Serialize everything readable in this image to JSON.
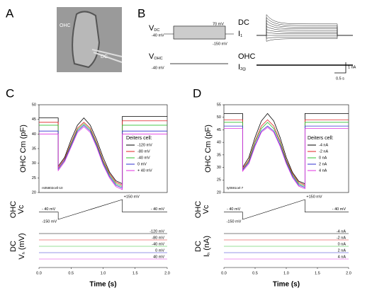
{
  "panel_labels": [
    "A",
    "B",
    "C",
    "D"
  ],
  "panel_a": {
    "labels": [
      "OHC",
      "DC"
    ]
  },
  "panel_b": {
    "vdc": {
      "main": "V",
      "sub": "DC"
    },
    "vdc_labels": [
      "70 mV",
      "-40 mV",
      "-150 mV"
    ],
    "vohc": {
      "main": "V",
      "sub": "OHC"
    },
    "vohc_label": "-40 mV",
    "dc": "DC",
    "i1": {
      "main": "I",
      "sub": "1"
    },
    "ohc": "OHC",
    "i2": {
      "main": "I",
      "sub": "2(j)"
    },
    "scale_y": "1 nA",
    "scale_x": "0.5 s"
  },
  "chart_data": [
    {
      "type": "line",
      "ylabel": "OHC Cm (pF)",
      "xlabel": "Time (s)",
      "xlim": [
        0,
        2
      ],
      "xticks": [
        {
          "value": 0,
          "label": "0.0"
        },
        {
          "value": 0.5,
          "label": "0.5"
        },
        {
          "value": 1,
          "label": "1.0"
        },
        {
          "value": 1.5,
          "label": "1.5"
        },
        {
          "value": 2,
          "label": "2.0"
        }
      ],
      "ylim": [
        20,
        50
      ],
      "yticks": [
        20,
        25,
        30,
        35,
        40,
        45,
        50
      ],
      "x": [
        0,
        0.3,
        0.3,
        0.4,
        0.5,
        0.6,
        0.7,
        0.8,
        0.9,
        1.0,
        1.1,
        1.2,
        1.3,
        1.3,
        2.0
      ],
      "legend_title": "Deiters cell:",
      "annotation": "rs05802cell-10",
      "series": [
        {
          "name": "-120 mV",
          "color": "#000000",
          "values": [
            45.5,
            45.5,
            29,
            32,
            38,
            43,
            45.5,
            43,
            38,
            32,
            27,
            24,
            23,
            46,
            46
          ]
        },
        {
          "name": "-80 mV",
          "color": "#e02020",
          "values": [
            44,
            44,
            28.5,
            31.5,
            37,
            42,
            44,
            42,
            37,
            31,
            26.5,
            23.5,
            22.5,
            44.5,
            44.5
          ]
        },
        {
          "name": "-40 mV",
          "color": "#30c030",
          "values": [
            43,
            43,
            28,
            31,
            36.5,
            41.5,
            43.5,
            41.5,
            36.5,
            30.5,
            26,
            23,
            22,
            43,
            43
          ]
        },
        {
          "name": "0 mV",
          "color": "#3030d0",
          "values": [
            41,
            41,
            28,
            31,
            36,
            41,
            43,
            41,
            36,
            30,
            25.5,
            22.5,
            21.5,
            41,
            41
          ]
        },
        {
          "name": "+ 40 mV",
          "color": "#e030e0",
          "values": [
            40,
            40,
            27.5,
            30.5,
            35.5,
            40.5,
            42.5,
            40.5,
            35.5,
            29.5,
            25,
            22,
            21,
            40,
            40
          ]
        }
      ],
      "vc_label": [
        "OHC",
        "Vc"
      ],
      "vc": {
        "x": [
          0,
          0.3,
          0.3,
          1.3,
          1.3,
          2.0
        ],
        "values": [
          -40,
          -40,
          -150,
          150,
          -40,
          -40
        ],
        "labels": [
          "- 40 mV",
          "-150 mV",
          "+150 mV",
          "- 40 mV"
        ]
      },
      "dc_label": {
        "line1": "DC",
        "main": "V",
        "sub": "h",
        "unit": " (mV)"
      },
      "dc": {
        "values": [
          -120,
          -80,
          -40,
          0,
          40
        ],
        "value_labels": [
          "-120 mV",
          "-80 mV",
          "-40 mV",
          "0 mV",
          "40 mV"
        ]
      }
    },
    {
      "type": "line",
      "ylabel": "OHC Cm (pF)",
      "xlabel": "Time (s)",
      "xlim": [
        0,
        2
      ],
      "xticks": [
        {
          "value": 0,
          "label": "0.0"
        },
        {
          "value": 0.5,
          "label": "0.5"
        },
        {
          "value": 1,
          "label": "1.0"
        },
        {
          "value": 1.5,
          "label": "1.5"
        },
        {
          "value": 2,
          "label": "2.0"
        }
      ],
      "ylim": [
        20,
        55
      ],
      "yticks": [
        20,
        25,
        30,
        35,
        40,
        45,
        50,
        55
      ],
      "x": [
        0,
        0.3,
        0.3,
        0.4,
        0.5,
        0.6,
        0.7,
        0.8,
        0.9,
        1.0,
        1.1,
        1.2,
        1.3,
        1.3,
        2.0
      ],
      "legend_title": "Deiters cell:",
      "annotation": "ty0591cel-7",
      "series": [
        {
          "name": "-4 nA",
          "color": "#000000",
          "values": [
            51.5,
            51.5,
            30,
            34,
            42,
            48.5,
            51.5,
            48.5,
            42,
            34,
            28,
            24.5,
            23.5,
            51.5,
            51.5
          ]
        },
        {
          "name": "-2 nA",
          "color": "#e02020",
          "values": [
            49,
            49,
            29.5,
            33,
            40.5,
            46.5,
            49,
            46.5,
            40.5,
            33,
            27.5,
            24,
            23,
            49,
            49
          ]
        },
        {
          "name": "0 nA",
          "color": "#30c030",
          "values": [
            48,
            48,
            29,
            32.5,
            40,
            45.5,
            48,
            45.5,
            40,
            32.5,
            27,
            23.5,
            22.5,
            48,
            48
          ]
        },
        {
          "name": "2 nA",
          "color": "#3030d0",
          "values": [
            46.5,
            46.5,
            29,
            32,
            39,
            44.5,
            46.5,
            44.5,
            39,
            32,
            26.5,
            23,
            22,
            46.5,
            46.5
          ]
        },
        {
          "name": "4 nA",
          "color": "#e030e0",
          "values": [
            45.5,
            45.5,
            28.5,
            31.5,
            38.5,
            44,
            46,
            44,
            38.5,
            31.5,
            26,
            22.5,
            21.5,
            45.5,
            45.5
          ]
        }
      ],
      "vc_label": [
        "OHC",
        "Vc"
      ],
      "vc": {
        "x": [
          0,
          0.3,
          0.3,
          1.3,
          1.3,
          2.0
        ],
        "values": [
          -40,
          -40,
          -150,
          150,
          -40,
          -40
        ],
        "labels": [
          "- 40 mV",
          "-150 mV",
          "+150 mV",
          "- 40 mV"
        ]
      },
      "dc_label": {
        "line1": "DC",
        "main": "I",
        "sub": "h",
        "unit": " (nA)"
      },
      "dc": {
        "values": [
          -4,
          -2,
          0,
          2,
          4
        ],
        "value_labels": [
          "-4 nA",
          "-2 nA",
          "0 nA",
          "2 nA",
          "4 nA"
        ]
      }
    }
  ]
}
